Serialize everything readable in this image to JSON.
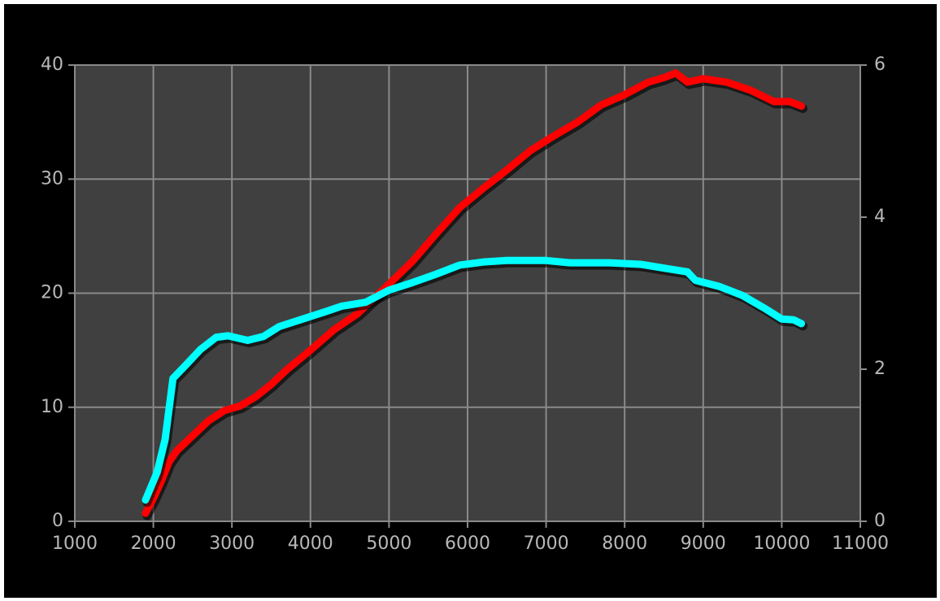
{
  "chart_data": {
    "type": "line",
    "xlim": [
      1000,
      11000
    ],
    "xticks": [
      1000,
      2000,
      3000,
      4000,
      5000,
      6000,
      7000,
      8000,
      9000,
      10000,
      11000
    ],
    "ylim": [
      0,
      40
    ],
    "yticks": [
      0,
      10,
      20,
      30,
      40
    ],
    "y2lim": [
      0,
      6
    ],
    "y2ticks": [
      0,
      2,
      4,
      6
    ],
    "grid": true,
    "series": [
      {
        "name": null,
        "color": "#ff0000",
        "axis": "y",
        "x": [
          1900,
          2000,
          2100,
          2200,
          2300,
          2500,
          2700,
          2900,
          3100,
          3300,
          3500,
          3700,
          4000,
          4300,
          4600,
          5000,
          5300,
          5600,
          5900,
          6200,
          6500,
          6800,
          7100,
          7400,
          7700,
          8000,
          8300,
          8500,
          8650,
          8800,
          9000,
          9300,
          9600,
          9900,
          10100,
          10250
        ],
        "values": [
          0.7,
          2,
          3.5,
          5.2,
          6.2,
          7.5,
          8.8,
          9.7,
          10.1,
          10.9,
          12.0,
          13.3,
          15.0,
          16.8,
          18.2,
          20.8,
          22.8,
          25.2,
          27.5,
          29.2,
          30.8,
          32.5,
          33.8,
          35.0,
          36.5,
          37.4,
          38.5,
          38.9,
          39.3,
          38.5,
          38.8,
          38.5,
          37.8,
          36.8,
          36.8,
          36.4
        ]
      },
      {
        "name": null,
        "color": "#00ffff",
        "axis": "y2",
        "x": [
          1900,
          2050,
          2150,
          2250,
          2400,
          2600,
          2800,
          2950,
          3200,
          3400,
          3600,
          3900,
          4200,
          4400,
          4700,
          5000,
          5300,
          5600,
          5900,
          6200,
          6500,
          7000,
          7300,
          7800,
          8200,
          8500,
          8800,
          8900,
          9200,
          9500,
          9800,
          10000,
          10150,
          10250
        ],
        "values": [
          0.28,
          0.65,
          1.08,
          1.88,
          2.04,
          2.26,
          2.42,
          2.44,
          2.38,
          2.43,
          2.56,
          2.66,
          2.76,
          2.83,
          2.88,
          3.04,
          3.14,
          3.25,
          3.37,
          3.41,
          3.43,
          3.43,
          3.4,
          3.4,
          3.38,
          3.33,
          3.28,
          3.17,
          3.09,
          2.97,
          2.79,
          2.66,
          2.65,
          2.6
        ]
      }
    ]
  }
}
